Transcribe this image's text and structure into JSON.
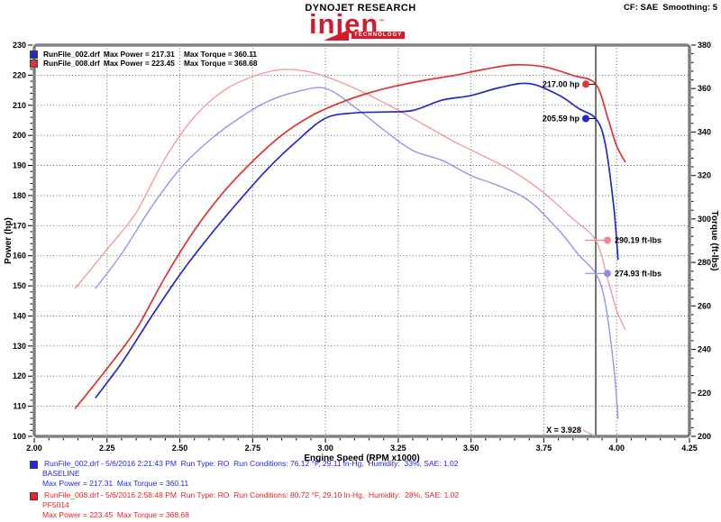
{
  "header": {
    "title": "DYNOJET RESEARCH",
    "settings": "CF: SAE  Smoothing: 5",
    "logo": {
      "text": "injen",
      "tm": "™",
      "sub": "TECHNOLOGY"
    },
    "logo_color": "#d41b2b"
  },
  "legend": {
    "rows": [
      {
        "file": "RunFile_002.drf",
        "power": "Max Power = 217.31",
        "torque": "Max Torque = 360.11",
        "color": "#2428c8"
      },
      {
        "file": "RunFile_008.drf",
        "power": "Max Power = 223.45",
        "torque": "Max Torque = 368.68",
        "color": "#e23333"
      }
    ]
  },
  "footer": {
    "runs": [
      {
        "color": "#2525e8",
        "line1": "RunFile_002.drf - 5/6/2016 2:21:43 PM  Run Type: RO  Run Conditions: 76.12 °F, 29.11 in-Hg,  Humidity:  33%, SAE: 1.02",
        "line2": "BASELINE",
        "line3": "Max Power = 217.31  Max Torque = 360.11"
      },
      {
        "color": "#ee2222",
        "line1": "RunFile_008.drf - 5/6/2016 2:58:48 PM  Run Type: RO  Run Conditions: 80.72 °F, 29.10 in-Hg,  Humidity:  28%, SAE: 1.02",
        "line2": "PF5014",
        "line3": "Max Power = 223.45  Max Torque = 368.68"
      }
    ]
  },
  "chart_data": {
    "type": "line",
    "xlabel": "Engine Speed (RPM x1000)",
    "ylabel_left": "Power (hp)",
    "ylabel_right": "Torque (ft-lbs)",
    "x_range": [
      2.0,
      4.25
    ],
    "x_major": 0.25,
    "x_minor": 0.05,
    "power_range": [
      100,
      230
    ],
    "power_major": 10,
    "power_minor": 2,
    "torque_range": [
      200,
      380
    ],
    "torque_major": 20,
    "torque_minor": 4,
    "grid": true,
    "grid_color": "#555555",
    "frame_color": "#8c8c8c",
    "cursor": {
      "x": 3.928,
      "label": "X = 3.928",
      "color": "#666666",
      "pointer_color": "#ea9a9a"
    },
    "callouts": [
      {
        "text": "217.00 hp",
        "axis": "power",
        "value": 217.0,
        "color": "#e23333"
      },
      {
        "text": "205.59 hp",
        "axis": "power",
        "value": 205.59,
        "color": "#2428c8"
      },
      {
        "text": "290.19 ft-lbs",
        "axis": "torque",
        "value": 290.19,
        "color": "#ef8b8b"
      },
      {
        "text": "274.93 ft-lbs",
        "axis": "torque",
        "value": 274.93,
        "color": "#8b90e8"
      }
    ],
    "series": [
      {
        "name": "RunFile_002.drf",
        "label": "BASELINE",
        "max_power": 217.31,
        "max_torque": 360.11,
        "power_color": "#2428c8",
        "torque_color": "#9099e6",
        "points_rpm_torque": [
          [
            2.21,
            268
          ],
          [
            2.3,
            284
          ],
          [
            2.4,
            305
          ],
          [
            2.5,
            323
          ],
          [
            2.6,
            336
          ],
          [
            2.7,
            346
          ],
          [
            2.8,
            354
          ],
          [
            2.9,
            358.5
          ],
          [
            3.0,
            360.1
          ],
          [
            3.1,
            351.5
          ],
          [
            3.2,
            341
          ],
          [
            3.3,
            331.5
          ],
          [
            3.4,
            327
          ],
          [
            3.5,
            320
          ],
          [
            3.6,
            315
          ],
          [
            3.7,
            308.3
          ],
          [
            3.8,
            295
          ],
          [
            3.87,
            283.5
          ],
          [
            3.928,
            274.9
          ],
          [
            3.96,
            262
          ],
          [
            3.99,
            232
          ],
          [
            4.005,
            208
          ]
        ]
      },
      {
        "name": "RunFile_008.drf",
        "label": "PF5014",
        "max_power": 223.45,
        "max_torque": 368.68,
        "power_color": "#e23333",
        "torque_color": "#f29e9e",
        "points_rpm_torque": [
          [
            2.14,
            268
          ],
          [
            2.25,
            286
          ],
          [
            2.35,
            303
          ],
          [
            2.45,
            328
          ],
          [
            2.55,
            347
          ],
          [
            2.65,
            359
          ],
          [
            2.75,
            365.5
          ],
          [
            2.85,
            368.7
          ],
          [
            2.95,
            367.5
          ],
          [
            3.05,
            363
          ],
          [
            3.15,
            357
          ],
          [
            3.25,
            350
          ],
          [
            3.35,
            342.5
          ],
          [
            3.45,
            335
          ],
          [
            3.55,
            328.5
          ],
          [
            3.65,
            321.5
          ],
          [
            3.75,
            312
          ],
          [
            3.85,
            300
          ],
          [
            3.928,
            290.2
          ],
          [
            3.97,
            272
          ],
          [
            4.0,
            258
          ],
          [
            4.03,
            249
          ]
        ]
      }
    ]
  }
}
